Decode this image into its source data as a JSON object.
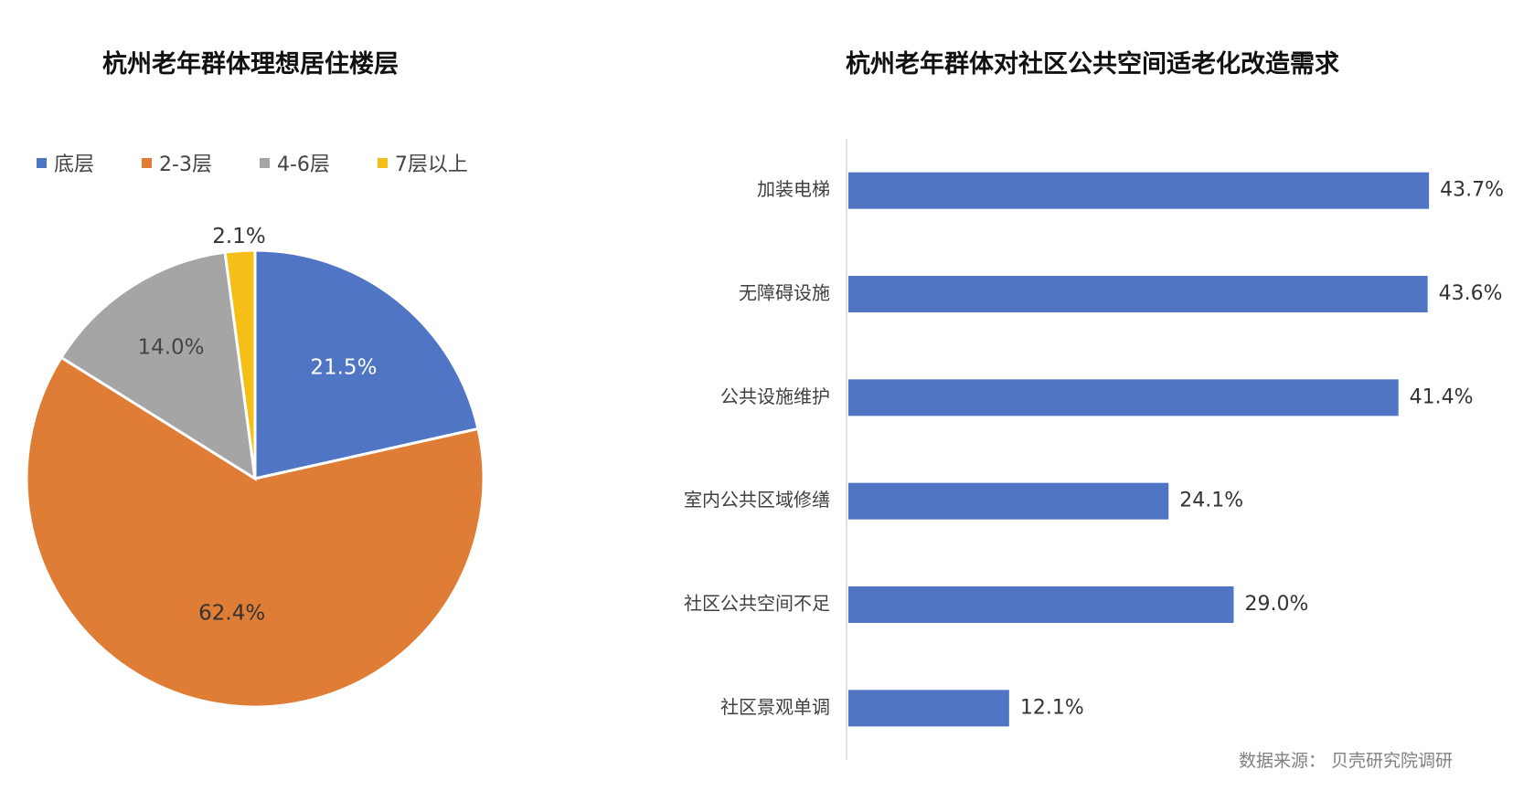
{
  "source_note": "数据来源： 贝壳研究院调研",
  "chart_data": [
    {
      "type": "pie",
      "title": "杭州老年群体理想居住楼层",
      "legend_position": "top",
      "categories": [
        "底层",
        "2-3层",
        "4-6层",
        "7层以上"
      ],
      "values": [
        21.5,
        62.4,
        14.0,
        2.1
      ],
      "data_labels": [
        "21.5%",
        "62.4%",
        "14.0%",
        "2.1%"
      ],
      "colors": [
        "#4f75c4",
        "#df7c35",
        "#a5a5a5",
        "#f5bf17"
      ],
      "label_colors": [
        "#ffffff",
        "#333333",
        "#444444",
        "#333333"
      ]
    },
    {
      "type": "bar",
      "orientation": "horizontal",
      "title": "杭州老年群体对社区公共空间适老化改造需求",
      "categories": [
        "加装电梯",
        "无障碍设施",
        "公共设施维护",
        "室内公共区域修缮",
        "社区公共空间不足",
        "社区景观单调"
      ],
      "values": [
        43.7,
        43.6,
        41.4,
        24.1,
        29.0,
        12.1
      ],
      "data_labels": [
        "43.7%",
        "43.6%",
        "41.4%",
        "24.1%",
        "29.0%",
        "12.1%"
      ],
      "color": "#4f75c4",
      "xlim": [
        0,
        45
      ],
      "grid": false
    }
  ]
}
